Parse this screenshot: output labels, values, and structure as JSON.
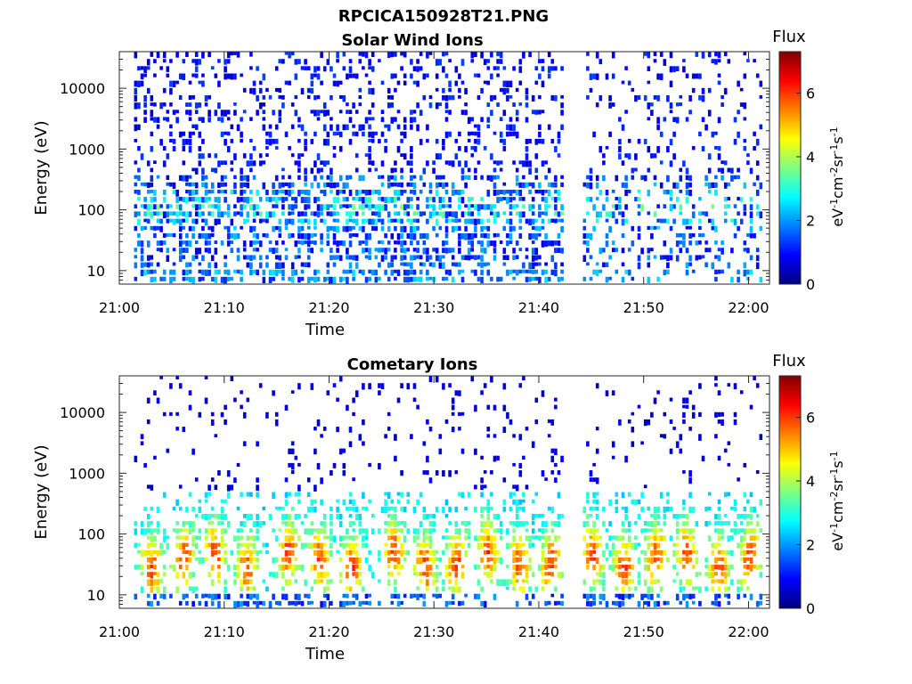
{
  "figure": {
    "title": "RPCICA150928T21.PNG"
  },
  "chart_data": [
    {
      "type": "heatmap",
      "title": "Solar Wind Ions",
      "xlabel": "Time",
      "ylabel": "Energy (eV)",
      "xticks": [
        "21:00",
        "21:10",
        "21:20",
        "21:30",
        "21:40",
        "21:50",
        "22:00"
      ],
      "xlim": [
        "21:00",
        "22:02"
      ],
      "yscale": "log",
      "yticks": [
        10,
        100,
        1000,
        10000
      ],
      "ytick_labels": [
        "10",
        "100",
        "1000",
        "10000"
      ],
      "ylim": [
        6,
        40000
      ],
      "data_gap": [
        "21:42",
        "21:44"
      ],
      "colorbar": {
        "title": "Flux",
        "label": "eV-1cm-2sr-1s-1",
        "ticks": [
          0,
          2,
          4,
          6
        ],
        "ticklabels": [
          "0",
          "2",
          "4",
          "6"
        ],
        "range": [
          0,
          7.3
        ],
        "colormap": "jet"
      },
      "profile": "solar_wind"
    },
    {
      "type": "heatmap",
      "title": "Cometary Ions",
      "xlabel": "Time",
      "ylabel": "Energy (eV)",
      "xticks": [
        "21:00",
        "21:10",
        "21:20",
        "21:30",
        "21:40",
        "21:50",
        "22:00"
      ],
      "xlim": [
        "21:00",
        "22:02"
      ],
      "yscale": "log",
      "yticks": [
        10,
        100,
        1000,
        10000
      ],
      "ytick_labels": [
        "10",
        "100",
        "1000",
        "10000"
      ],
      "ylim": [
        6,
        40000
      ],
      "data_gap": [
        "21:42",
        "21:44"
      ],
      "burst_times": [
        "21:03",
        "21:06",
        "21:09",
        "21:12",
        "21:16",
        "21:19",
        "21:22",
        "21:26",
        "21:29",
        "21:32",
        "21:35",
        "21:38",
        "21:41",
        "21:45",
        "21:48",
        "21:51",
        "21:54",
        "21:57",
        "22:00"
      ],
      "colorbar": {
        "title": "Flux",
        "label": "eV-1cm-2sr-1s-1",
        "ticks": [
          0,
          2,
          4,
          6
        ],
        "ticklabels": [
          "0",
          "2",
          "4",
          "6"
        ],
        "range": [
          0,
          7.3
        ],
        "colormap": "jet"
      },
      "profile": "cometary"
    }
  ]
}
